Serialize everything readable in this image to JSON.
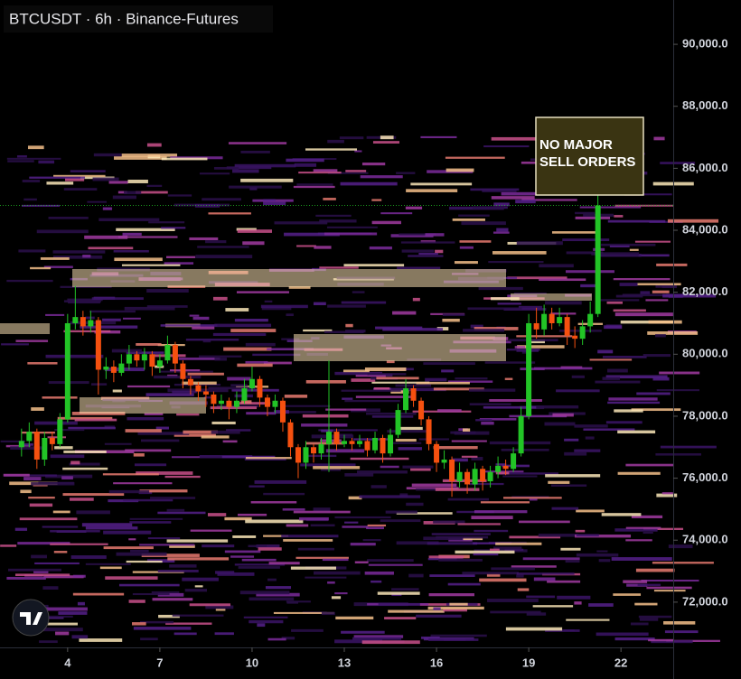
{
  "chart_data": {
    "type": "candlestick",
    "title": "BTCUSDT · 6h · Binance-Futures",
    "annotation": [
      "NO MAJOR",
      "SELL ORDERS"
    ],
    "up_color": "#22c426",
    "down_color": "#f5500f",
    "xlim": [
      1.8,
      23.7
    ],
    "xticks": [
      4,
      7,
      10,
      13,
      16,
      19,
      22
    ],
    "ylim": [
      70540,
      91430
    ],
    "yticks": [
      {
        "value": 72000,
        "label": "72,000.0"
      },
      {
        "value": 74000,
        "label": "74,000.0"
      },
      {
        "value": 76000,
        "label": "76,000.0"
      },
      {
        "value": 78000,
        "label": "78,000.0"
      },
      {
        "value": 80000,
        "label": "80,000.0"
      },
      {
        "value": 82000,
        "label": "82,000.0"
      },
      {
        "value": 84000,
        "label": "84,000.0"
      },
      {
        "value": 86000,
        "label": "86,000.0"
      },
      {
        "value": 88000,
        "label": "88,000.0"
      },
      {
        "value": 90000,
        "label": "90,000.0"
      }
    ],
    "x": [
      2.5,
      2.75,
      3,
      3.25,
      3.5,
      3.75,
      4,
      4.25,
      4.5,
      4.75,
      5,
      5.25,
      5.5,
      5.75,
      6,
      6.25,
      6.5,
      6.75,
      7,
      7.25,
      7.5,
      7.75,
      8,
      8.25,
      8.5,
      8.75,
      9,
      9.25,
      9.5,
      9.75,
      10,
      10.25,
      10.5,
      10.75,
      11,
      11.25,
      11.5,
      11.75,
      12,
      12.25,
      12.5,
      12.75,
      13,
      13.25,
      13.5,
      13.75,
      14,
      14.25,
      14.5,
      14.75,
      15,
      15.25,
      15.5,
      15.75,
      16,
      16.25,
      16.5,
      16.75,
      17,
      17.25,
      17.5,
      17.75,
      18,
      18.25,
      18.5,
      18.75,
      19,
      19.25,
      19.5,
      19.75,
      20,
      20.25,
      20.5,
      20.75,
      21,
      21.25
    ],
    "open": [
      77000,
      77200,
      77500,
      76600,
      77300,
      77100,
      77900,
      81000,
      81200,
      80900,
      81100,
      79500,
      79600,
      79400,
      79700,
      80000,
      79800,
      80000,
      79600,
      79800,
      80300,
      79700,
      79200,
      79000,
      78800,
      78700,
      78400,
      78500,
      78300,
      78500,
      78900,
      79200,
      78600,
      78300,
      78500,
      77800,
      77000,
      76500,
      77000,
      76800,
      77100,
      77500,
      77100,
      77200,
      77100,
      77200,
      76900,
      77300,
      76800,
      77400,
      78200,
      78900,
      78500,
      77900,
      77100,
      76500,
      76600,
      75900,
      76200,
      75800,
      76300,
      75900,
      76200,
      76400,
      76300,
      76800,
      78000,
      81000,
      80800,
      81300,
      81000,
      81200,
      80600,
      80500,
      80900,
      81300
    ],
    "high": [
      77600,
      77800,
      77600,
      77500,
      77500,
      78100,
      81300,
      82200,
      81400,
      81400,
      81200,
      79900,
      79800,
      80000,
      80300,
      80100,
      80200,
      80100,
      80000,
      80600,
      80400,
      79800,
      79300,
      79100,
      79000,
      78800,
      78700,
      78600,
      78800,
      79200,
      79600,
      79300,
      78700,
      78700,
      78600,
      77900,
      77100,
      77200,
      77100,
      77300,
      79800,
      77600,
      77400,
      77300,
      77400,
      77300,
      77500,
      77400,
      77600,
      78400,
      79200,
      79000,
      78600,
      78000,
      77200,
      76900,
      76700,
      76500,
      76300,
      76500,
      76400,
      76400,
      76700,
      76600,
      77000,
      78300,
      81300,
      81500,
      81600,
      81500,
      81500,
      81300,
      80900,
      81100,
      81700,
      85200
    ],
    "low": [
      76700,
      77000,
      76300,
      76400,
      76900,
      77000,
      77800,
      80800,
      80600,
      80700,
      78700,
      79200,
      79100,
      79300,
      79500,
      79600,
      79500,
      79300,
      79400,
      79700,
      79400,
      78900,
      78700,
      78500,
      78300,
      78100,
      78200,
      77900,
      78100,
      78400,
      78800,
      78300,
      78000,
      78100,
      77500,
      76700,
      76000,
      76300,
      76500,
      76600,
      76200,
      76900,
      77000,
      76900,
      77000,
      76700,
      76800,
      76500,
      76700,
      77300,
      78100,
      78300,
      77700,
      76900,
      76200,
      76300,
      75400,
      75700,
      75500,
      75600,
      75600,
      75700,
      76000,
      76100,
      76200,
      76700,
      77900,
      80500,
      80600,
      80800,
      80900,
      80300,
      80200,
      80300,
      80700,
      81200
    ],
    "close": [
      77200,
      77500,
      76600,
      77300,
      77100,
      77900,
      81000,
      81200,
      80900,
      81100,
      79500,
      79600,
      79400,
      79700,
      80000,
      79800,
      80000,
      79600,
      79800,
      80300,
      79700,
      79200,
      79000,
      78800,
      78700,
      78400,
      78500,
      78300,
      78500,
      78900,
      79200,
      78600,
      78300,
      78500,
      77800,
      77000,
      76500,
      77000,
      76800,
      77100,
      77500,
      77100,
      77200,
      77100,
      77200,
      76900,
      77300,
      76800,
      77400,
      78200,
      78900,
      78500,
      77900,
      77100,
      76500,
      76600,
      75900,
      76200,
      75800,
      76300,
      75900,
      76200,
      76400,
      76300,
      76800,
      78000,
      81000,
      80800,
      81300,
      81000,
      81200,
      80600,
      80500,
      80900,
      81300,
      84800
    ]
  }
}
